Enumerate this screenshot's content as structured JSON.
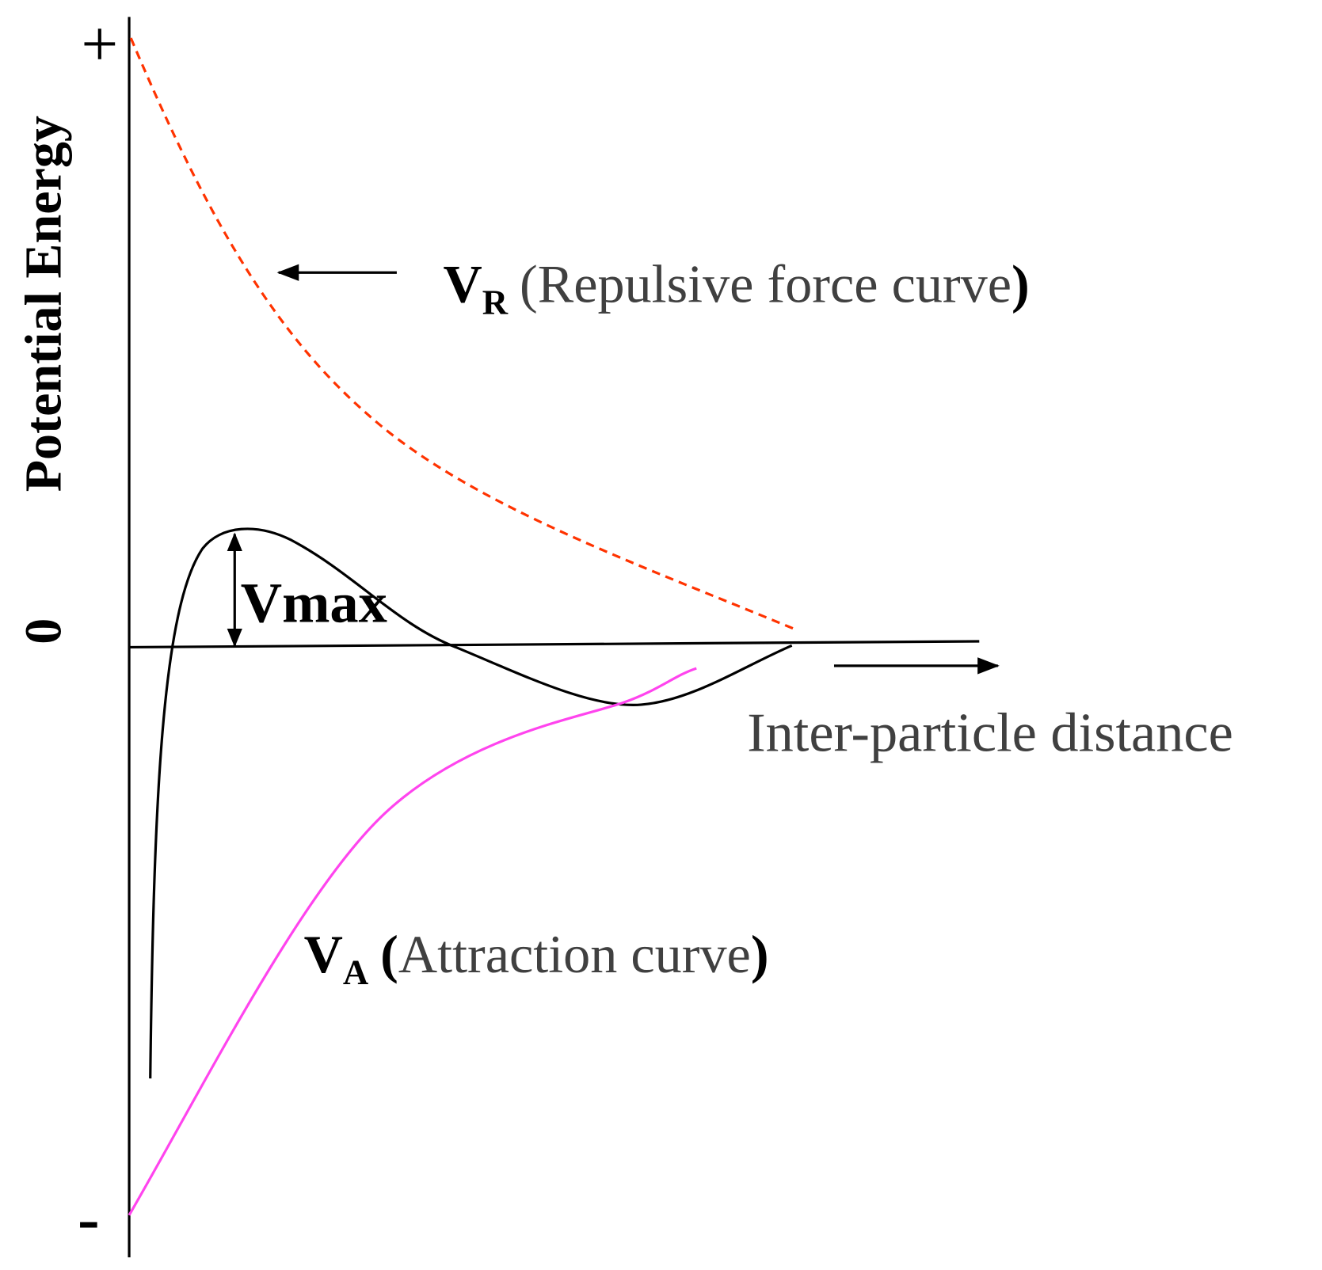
{
  "axis": {
    "top": "+",
    "label": "Potential Energy",
    "zero": "0",
    "bottom": "-",
    "x_label": "Inter-particle distance"
  },
  "annotations": {
    "vmax": "Vmax",
    "repulsive": {
      "symbol": "V",
      "subscript": "R",
      "text": "(Repulsive force curve",
      "close": ")"
    },
    "attraction": {
      "symbol": "V",
      "subscript": "A",
      "open": "(",
      "text": "Attraction curve",
      "close": ")"
    }
  }
}
